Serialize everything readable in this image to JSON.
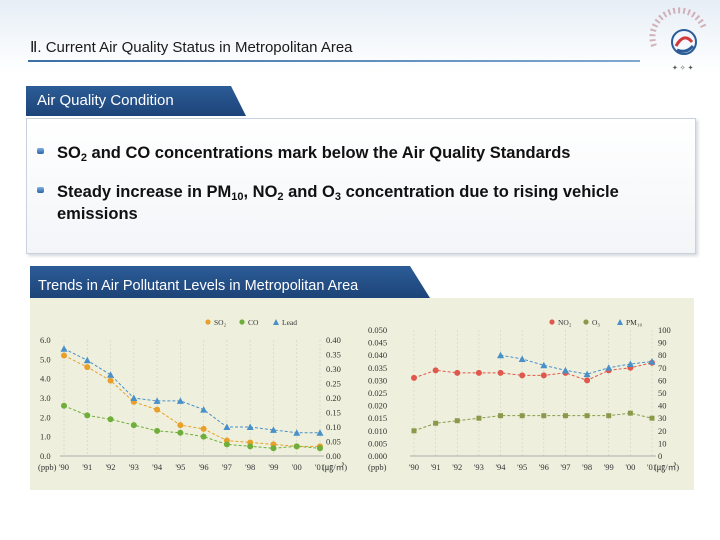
{
  "header": {
    "title": "Ⅱ. Current Air Quality Status in Metropolitan Area"
  },
  "section1": {
    "tab_label": "Air Quality Condition",
    "bullets": [
      {
        "pre": "SO",
        "sub1": "2",
        "mid1": " and CO concentrations mark below the Air Quality Standards",
        "sub2": "",
        "mid2": "",
        "sub3": "",
        "post": ""
      },
      {
        "pre": "Steady increase in PM",
        "sub1": "10",
        "mid1": ", NO",
        "sub2": "2",
        "mid2": " and O",
        "sub3": "3",
        "post": " concentration due to rising vehicle emissions"
      }
    ]
  },
  "section2": {
    "tab_label": "Trends in Air Pollutant Levels in Metropolitan Area"
  },
  "colors": {
    "navy": "#1d4478",
    "so2": "#e8a02a",
    "co": "#6fae3a",
    "lead": "#4a90c8",
    "no2": "#e0574d",
    "o3": "#8a9a4a",
    "pm10": "#4a90c8"
  },
  "chart_data": [
    {
      "type": "line",
      "categories": [
        "'90",
        "'91",
        "'92",
        "'93",
        "'94",
        "'95",
        "'96",
        "'97",
        "'98",
        "'99",
        "'00",
        "'01"
      ],
      "series": [
        {
          "name": "SO₂",
          "axis": "left",
          "color": "#e8a02a",
          "values": [
            5.2,
            4.6,
            3.9,
            2.8,
            2.4,
            1.6,
            1.4,
            0.8,
            0.7,
            0.6,
            0.5,
            0.5
          ]
        },
        {
          "name": "CO",
          "axis": "left",
          "color": "#6fae3a",
          "values": [
            2.6,
            2.1,
            1.9,
            1.6,
            1.3,
            1.2,
            1.0,
            0.6,
            0.5,
            0.4,
            0.5,
            0.4
          ]
        },
        {
          "name": "Lead",
          "axis": "right",
          "color": "#4a90c8",
          "values": [
            0.37,
            0.33,
            0.28,
            0.2,
            0.19,
            0.19,
            0.16,
            0.1,
            0.1,
            0.09,
            0.08,
            0.08
          ]
        }
      ],
      "left_axis": {
        "ticks": [
          "6.0",
          "5.0",
          "4.0",
          "3.0",
          "2.0",
          "1.0",
          "0.0"
        ],
        "unit": "(ppb)",
        "ylim": [
          0,
          6
        ]
      },
      "right_axis": {
        "ticks": [
          "0.40",
          "0.35",
          "0.30",
          "0.25",
          "0.20",
          "0.15",
          "0.10",
          "0.05",
          "0.00"
        ],
        "unit": "(㎍/㎥)",
        "ylim": [
          0,
          0.4
        ]
      },
      "legend_position": "top-right"
    },
    {
      "type": "line",
      "categories": [
        "'90",
        "'91",
        "'92",
        "'93",
        "'94",
        "'95",
        "'96",
        "'97",
        "'98",
        "'99",
        "'00",
        "'01"
      ],
      "series": [
        {
          "name": "NO₂",
          "axis": "left",
          "color": "#e0574d",
          "values": [
            0.031,
            0.034,
            0.033,
            0.033,
            0.033,
            0.032,
            0.032,
            0.033,
            0.03,
            0.034,
            0.035,
            0.037
          ]
        },
        {
          "name": "O₃",
          "axis": "left",
          "color": "#8a9a4a",
          "values": [
            0.01,
            0.013,
            0.014,
            0.015,
            0.016,
            0.016,
            0.016,
            0.016,
            0.016,
            0.016,
            0.017,
            0.015
          ]
        },
        {
          "name": "PM₁₀",
          "axis": "right",
          "color": "#4a90c8",
          "values": null,
          "values_from": "'94",
          "partial_values": [
            80,
            77,
            72,
            68,
            65,
            70,
            73,
            75
          ]
        }
      ],
      "left_axis": {
        "ticks": [
          "0.050",
          "0.045",
          "0.040",
          "0.035",
          "0.030",
          "0.025",
          "0.020",
          "0.015",
          "0.010",
          "0.005",
          "0.000"
        ],
        "unit": "(ppb)",
        "ylim": [
          0,
          0.05
        ]
      },
      "right_axis": {
        "ticks": [
          "100",
          "90",
          "80",
          "70",
          "60",
          "50",
          "40",
          "30",
          "20",
          "10",
          "0"
        ],
        "unit": "(㎍/㎥)",
        "ylim": [
          0,
          100
        ]
      },
      "legend_position": "top-right"
    }
  ]
}
